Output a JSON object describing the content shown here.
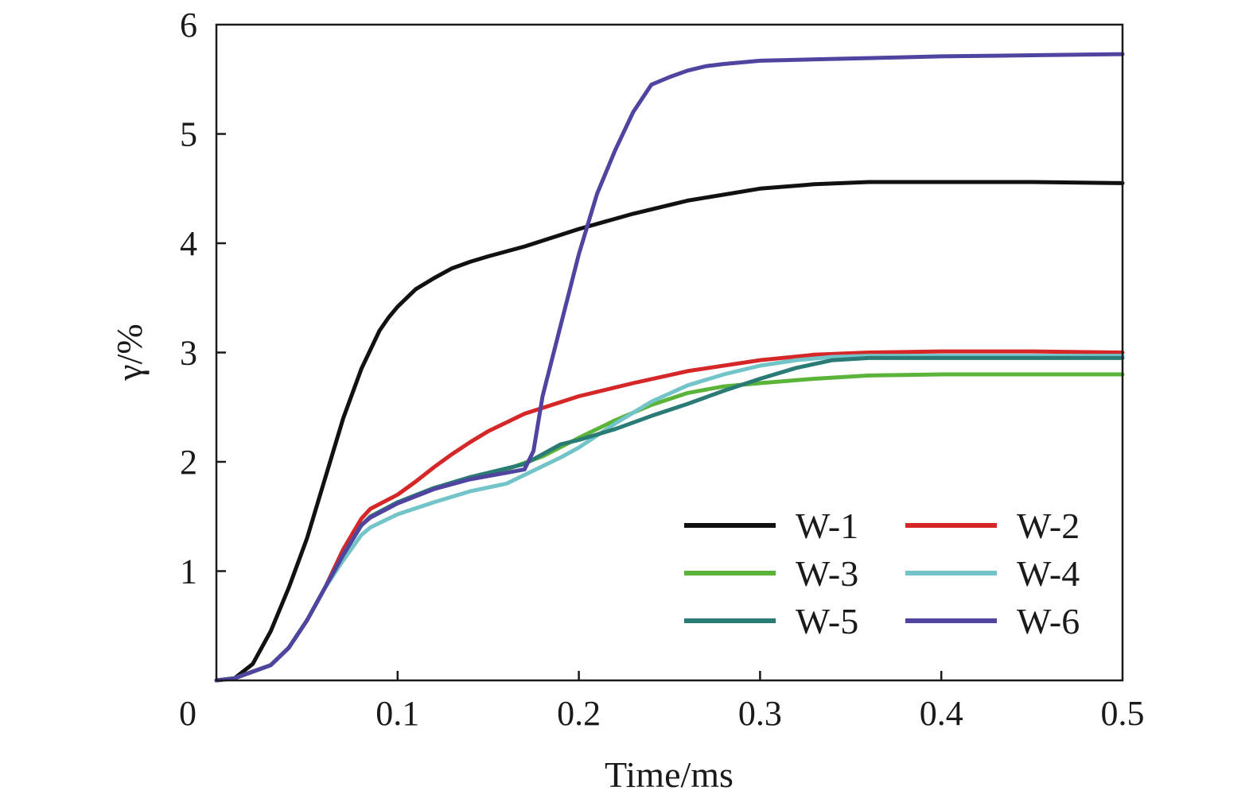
{
  "chart_data": {
    "type": "line",
    "xlabel": "Time/ms",
    "ylabel": "γ/%",
    "xlim": [
      0,
      0.5
    ],
    "ylim": [
      0,
      6
    ],
    "x_ticks": [
      0,
      0.1,
      0.2,
      0.3,
      0.4,
      0.5
    ],
    "x_tick_labels": [
      "0",
      "0.1",
      "0.2",
      "0.3",
      "0.4",
      "0.5"
    ],
    "y_ticks": [
      1,
      2,
      3,
      4,
      5,
      6
    ],
    "y_tick_labels": [
      "1",
      "2",
      "3",
      "4",
      "5",
      "6"
    ],
    "grid": false,
    "legend_position": "bottom-right",
    "series": [
      {
        "name": "W-1",
        "color": "#111111",
        "x": [
          0,
          0.01,
          0.02,
          0.03,
          0.04,
          0.05,
          0.06,
          0.07,
          0.08,
          0.09,
          0.095,
          0.1,
          0.11,
          0.12,
          0.13,
          0.14,
          0.15,
          0.17,
          0.2,
          0.23,
          0.26,
          0.3,
          0.33,
          0.36,
          0.4,
          0.45,
          0.5
        ],
        "y": [
          0,
          0.02,
          0.15,
          0.45,
          0.85,
          1.3,
          1.85,
          2.4,
          2.85,
          3.2,
          3.32,
          3.42,
          3.58,
          3.68,
          3.77,
          3.83,
          3.88,
          3.97,
          4.13,
          4.27,
          4.39,
          4.5,
          4.54,
          4.56,
          4.56,
          4.56,
          4.55
        ]
      },
      {
        "name": "W-2",
        "color": "#d62728",
        "x": [
          0,
          0.01,
          0.02,
          0.03,
          0.04,
          0.05,
          0.06,
          0.07,
          0.08,
          0.085,
          0.1,
          0.11,
          0.12,
          0.13,
          0.14,
          0.15,
          0.17,
          0.2,
          0.23,
          0.26,
          0.3,
          0.33,
          0.36,
          0.4,
          0.45,
          0.5
        ],
        "y": [
          0,
          0.02,
          0.08,
          0.14,
          0.3,
          0.55,
          0.85,
          1.2,
          1.48,
          1.57,
          1.7,
          1.82,
          1.95,
          2.07,
          2.18,
          2.28,
          2.44,
          2.6,
          2.72,
          2.83,
          2.93,
          2.98,
          3.0,
          3.01,
          3.01,
          3.0
        ]
      },
      {
        "name": "W-3",
        "color": "#5ab43a",
        "x": [
          0,
          0.01,
          0.02,
          0.03,
          0.04,
          0.05,
          0.06,
          0.07,
          0.08,
          0.085,
          0.1,
          0.12,
          0.14,
          0.16,
          0.18,
          0.2,
          0.22,
          0.24,
          0.26,
          0.28,
          0.3,
          0.33,
          0.36,
          0.4,
          0.45,
          0.5
        ],
        "y": [
          0,
          0.02,
          0.08,
          0.14,
          0.3,
          0.55,
          0.85,
          1.15,
          1.42,
          1.5,
          1.63,
          1.76,
          1.85,
          1.93,
          2.05,
          2.22,
          2.38,
          2.52,
          2.63,
          2.69,
          2.72,
          2.76,
          2.79,
          2.8,
          2.8,
          2.8
        ]
      },
      {
        "name": "W-4",
        "color": "#72c4c8",
        "x": [
          0,
          0.01,
          0.02,
          0.03,
          0.04,
          0.05,
          0.06,
          0.07,
          0.08,
          0.085,
          0.1,
          0.12,
          0.14,
          0.16,
          0.17,
          0.18,
          0.19,
          0.2,
          0.22,
          0.24,
          0.26,
          0.28,
          0.3,
          0.32,
          0.34,
          0.36,
          0.4,
          0.45,
          0.5
        ],
        "y": [
          0,
          0.02,
          0.08,
          0.14,
          0.3,
          0.55,
          0.85,
          1.1,
          1.33,
          1.4,
          1.52,
          1.63,
          1.73,
          1.8,
          1.88,
          1.96,
          2.04,
          2.13,
          2.35,
          2.55,
          2.7,
          2.8,
          2.88,
          2.93,
          2.96,
          2.97,
          2.97,
          2.97,
          2.97
        ]
      },
      {
        "name": "W-5",
        "color": "#2a7a76",
        "x": [
          0,
          0.01,
          0.02,
          0.03,
          0.04,
          0.05,
          0.06,
          0.07,
          0.08,
          0.085,
          0.1,
          0.12,
          0.14,
          0.16,
          0.17,
          0.18,
          0.19,
          0.2,
          0.22,
          0.24,
          0.26,
          0.28,
          0.3,
          0.32,
          0.34,
          0.36,
          0.4,
          0.45,
          0.5
        ],
        "y": [
          0,
          0.02,
          0.08,
          0.14,
          0.3,
          0.55,
          0.85,
          1.15,
          1.42,
          1.5,
          1.63,
          1.76,
          1.86,
          1.94,
          1.98,
          2.07,
          2.16,
          2.2,
          2.3,
          2.42,
          2.53,
          2.65,
          2.76,
          2.86,
          2.93,
          2.95,
          2.95,
          2.95,
          2.95
        ]
      },
      {
        "name": "W-6",
        "color": "#4f44a0",
        "x": [
          0,
          0.01,
          0.02,
          0.03,
          0.04,
          0.05,
          0.06,
          0.07,
          0.08,
          0.085,
          0.1,
          0.12,
          0.14,
          0.16,
          0.17,
          0.175,
          0.18,
          0.19,
          0.2,
          0.21,
          0.22,
          0.23,
          0.24,
          0.25,
          0.26,
          0.27,
          0.28,
          0.3,
          0.35,
          0.4,
          0.45,
          0.5
        ],
        "y": [
          0,
          0.02,
          0.08,
          0.14,
          0.3,
          0.55,
          0.85,
          1.15,
          1.42,
          1.49,
          1.62,
          1.75,
          1.84,
          1.9,
          1.93,
          2.1,
          2.6,
          3.25,
          3.9,
          4.45,
          4.85,
          5.2,
          5.45,
          5.52,
          5.58,
          5.62,
          5.64,
          5.67,
          5.69,
          5.71,
          5.72,
          5.73
        ]
      }
    ]
  }
}
